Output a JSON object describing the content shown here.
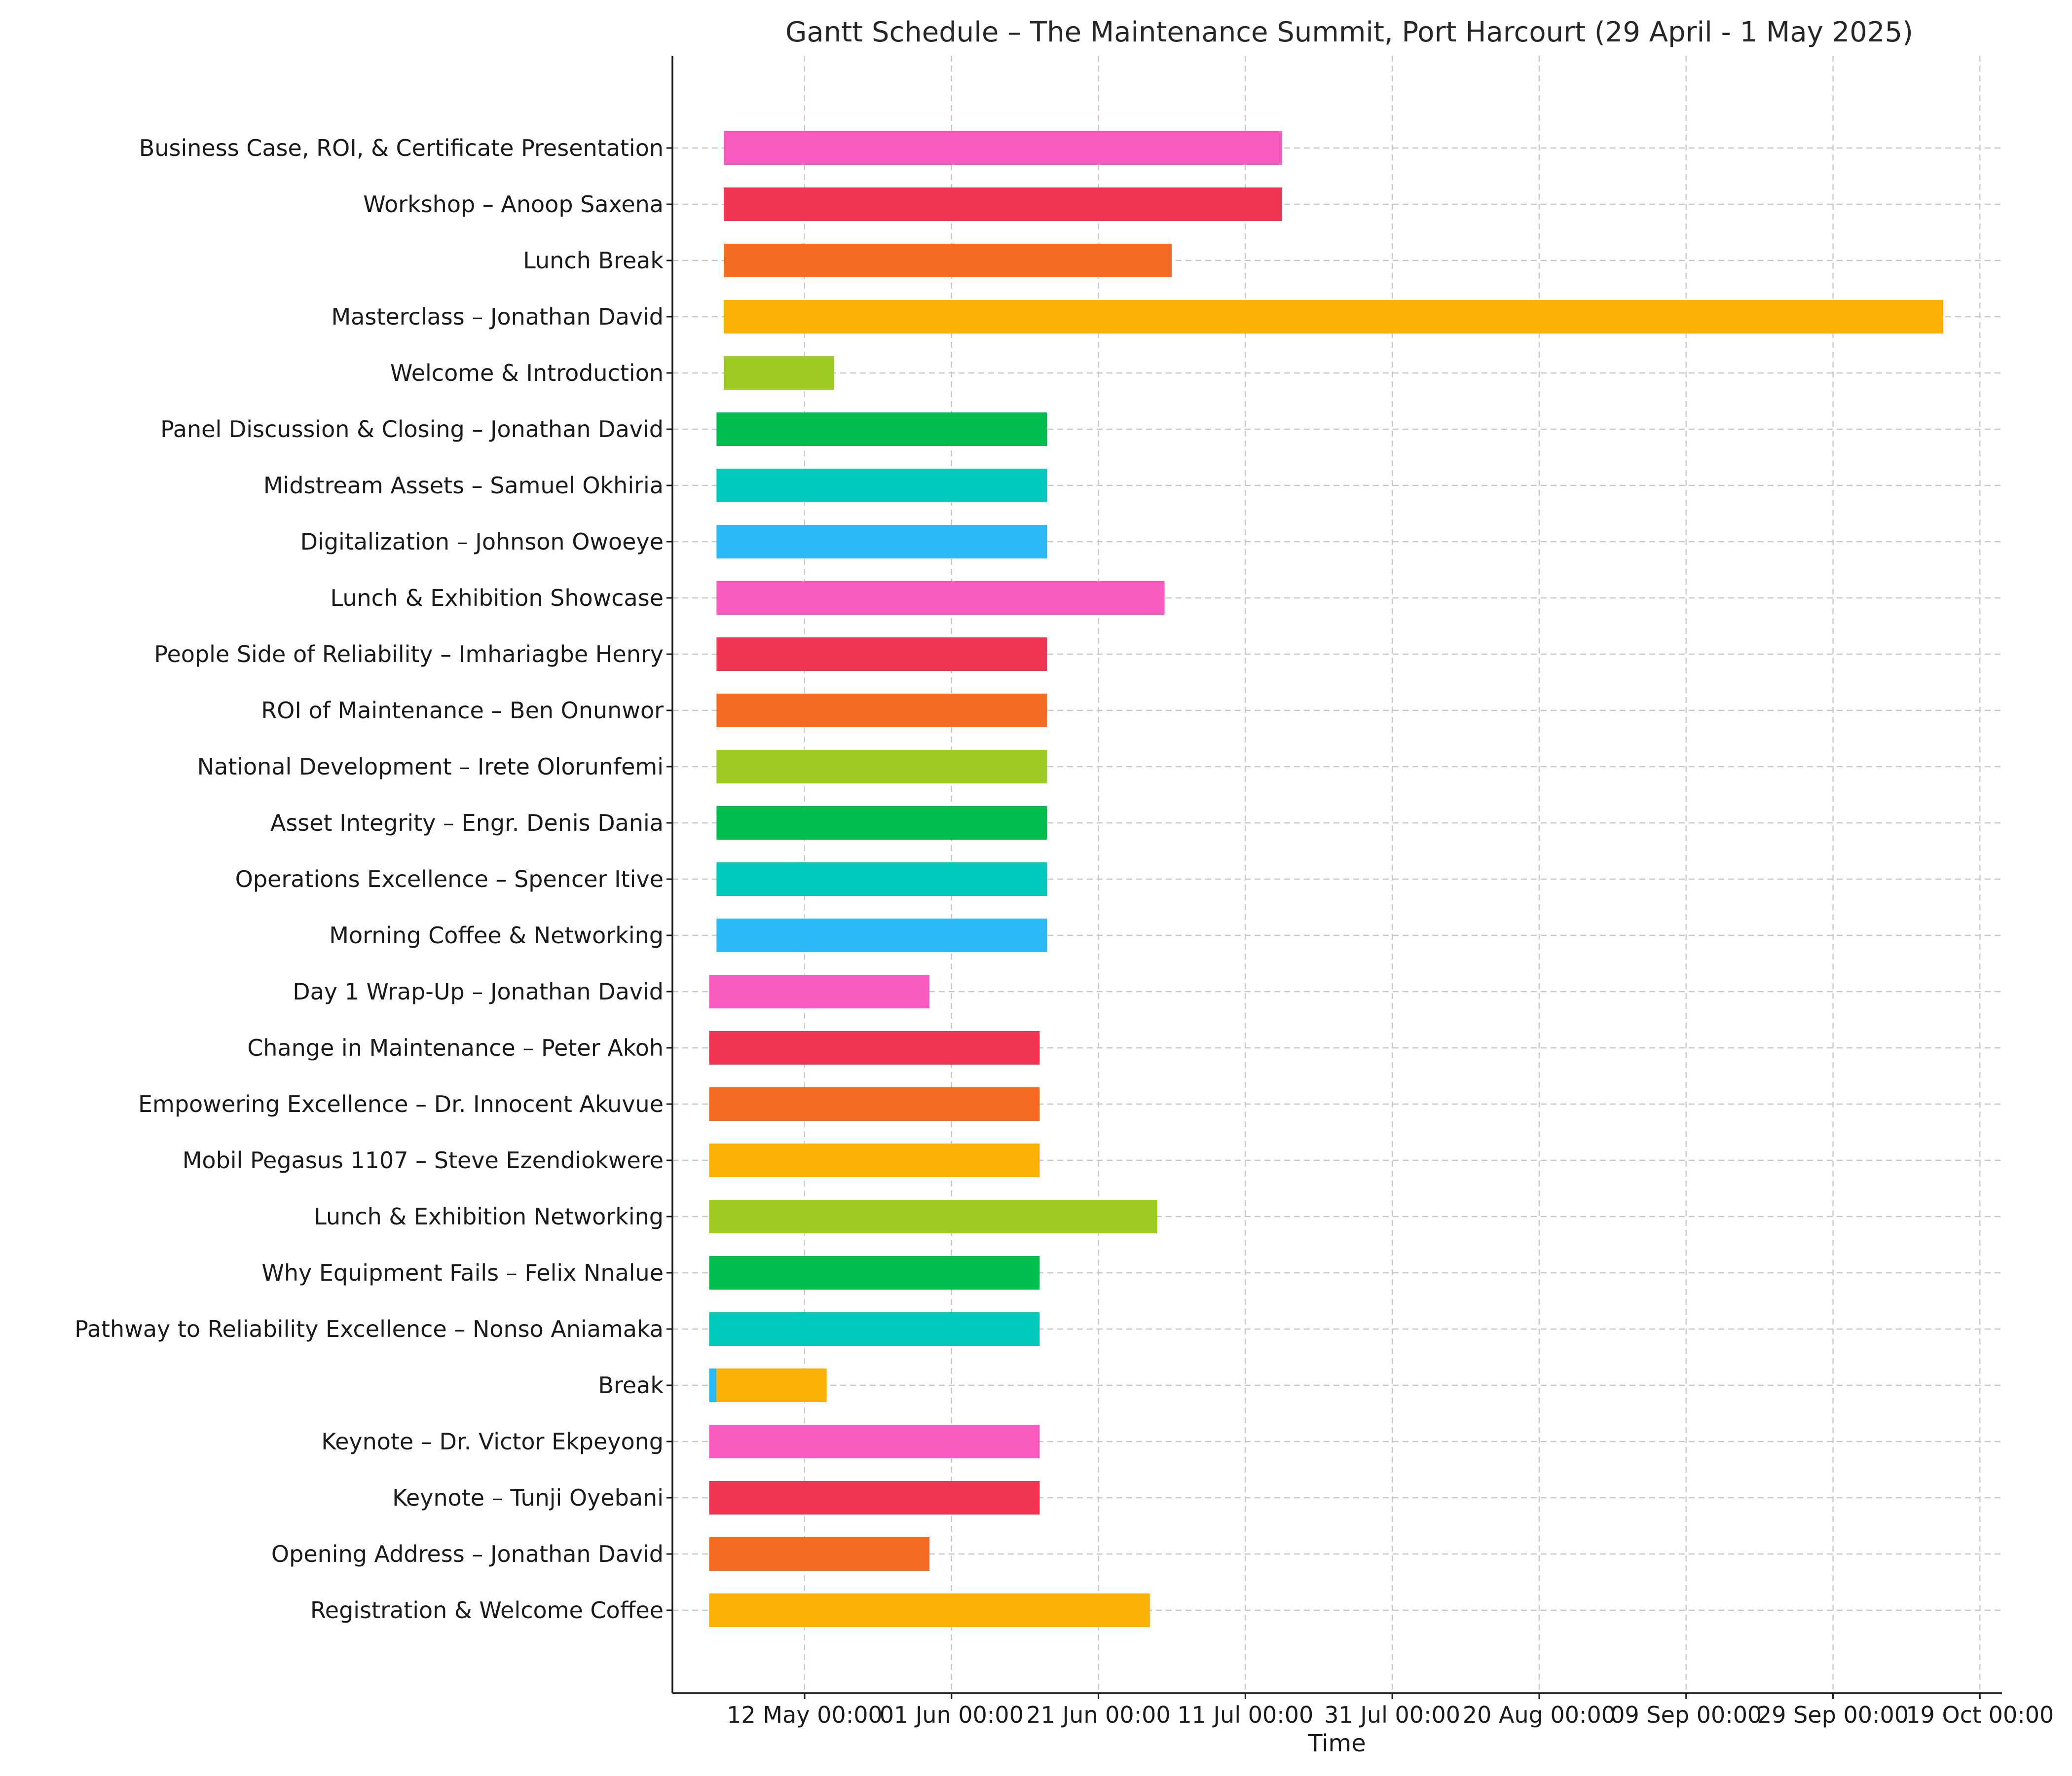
{
  "chart_data": {
    "type": "bar",
    "orientation": "horizontal-gantt",
    "title": "Gantt Schedule – The Maintenance Summit, Port Harcourt (29 April - 1 May 2025)",
    "xlabel": "Time",
    "ylabel": "",
    "grid": true,
    "legend": "none",
    "x_axis": {
      "type": "date",
      "range": [
        "2025-04-24",
        "2025-10-22"
      ],
      "ticks": [
        {
          "date": "2025-05-12",
          "label": "12 May 00:00"
        },
        {
          "date": "2025-06-01",
          "label": "01 Jun 00:00"
        },
        {
          "date": "2025-06-21",
          "label": "21 Jun 00:00"
        },
        {
          "date": "2025-07-11",
          "label": "11 Jul 00:00"
        },
        {
          "date": "2025-07-31",
          "label": "31 Jul 00:00"
        },
        {
          "date": "2025-08-20",
          "label": "20 Aug 00:00"
        },
        {
          "date": "2025-09-09",
          "label": "09 Sep 00:00"
        },
        {
          "date": "2025-09-29",
          "label": "29 Sep 00:00"
        },
        {
          "date": "2025-10-19",
          "label": "19 Oct 00:00"
        }
      ]
    },
    "tasks": [
      {
        "label": "Business Case, ROI, & Certificate Presentation",
        "start": "2025-05-01",
        "end": "2025-07-16",
        "color": "#f75bbf"
      },
      {
        "label": "Workshop – Anoop Saxena",
        "start": "2025-05-01",
        "end": "2025-07-16",
        "color": "#f03553"
      },
      {
        "label": "Lunch Break",
        "start": "2025-05-01",
        "end": "2025-07-01",
        "color": "#f26b21"
      },
      {
        "label": "Masterclass – Jonathan David",
        "start": "2025-05-01",
        "end": "2025-10-14",
        "color": "#fbb005"
      },
      {
        "label": "Welcome & Introduction",
        "start": "2025-05-01",
        "end": "2025-05-16",
        "color": "#9cca22"
      },
      {
        "label": "Panel Discussion & Closing – Jonathan David",
        "start": "2025-04-30",
        "end": "2025-06-14",
        "color": "#00bf4f"
      },
      {
        "label": "Midstream Assets – Samuel Okhiria",
        "start": "2025-04-30",
        "end": "2025-06-14",
        "color": "#00c9bb"
      },
      {
        "label": "Digitalization – Johnson Owoeye",
        "start": "2025-04-30",
        "end": "2025-06-14",
        "color": "#2ab9f6"
      },
      {
        "label": "Lunch & Exhibition Showcase",
        "start": "2025-04-30",
        "end": "2025-06-30",
        "color": "#f75bbf"
      },
      {
        "label": "People Side of Reliability – Imhariagbe Henry",
        "start": "2025-04-30",
        "end": "2025-06-14",
        "color": "#f03553"
      },
      {
        "label": "ROI of Maintenance – Ben Onunwor",
        "start": "2025-04-30",
        "end": "2025-06-14",
        "color": "#f26b21"
      },
      {
        "label": "National Development – Irete Olorunfemi",
        "start": "2025-04-30",
        "end": "2025-06-14",
        "color": "#9cca22"
      },
      {
        "label": "Asset Integrity – Engr. Denis Dania",
        "start": "2025-04-30",
        "end": "2025-06-14",
        "color": "#00bf4f"
      },
      {
        "label": "Operations Excellence – Spencer Itive",
        "start": "2025-04-30",
        "end": "2025-06-14",
        "color": "#00c9bb"
      },
      {
        "label": "Morning Coffee & Networking",
        "start": "2025-04-30",
        "end": "2025-06-14",
        "color": "#2ab9f6"
      },
      {
        "label": "Day 1 Wrap-Up – Jonathan David",
        "start": "2025-04-29",
        "end": "2025-05-29",
        "color": "#f75bbf"
      },
      {
        "label": "Change in Maintenance – Peter Akoh",
        "start": "2025-04-29",
        "end": "2025-06-13",
        "color": "#f03553"
      },
      {
        "label": "Empowering Excellence – Dr. Innocent Akuvue",
        "start": "2025-04-29",
        "end": "2025-06-13",
        "color": "#f26b21"
      },
      {
        "label": "Mobil Pegasus 1107 – Steve Ezendiokwere",
        "start": "2025-04-29",
        "end": "2025-06-13",
        "color": "#fbb005"
      },
      {
        "label": "Lunch & Exhibition Networking",
        "start": "2025-04-29",
        "end": "2025-06-29",
        "color": "#9cca22"
      },
      {
        "label": "Why Equipment Fails – Felix Nnalue",
        "start": "2025-04-29",
        "end": "2025-06-13",
        "color": "#00bf4f"
      },
      {
        "label": "Pathway to Reliability Excellence – Nonso Aniamaka",
        "start": "2025-04-29",
        "end": "2025-06-13",
        "color": "#00c9bb"
      },
      {
        "label": "Break",
        "start": "2025-04-29",
        "end": "2025-04-30",
        "color": "#2ab9f6"
      },
      {
        "label": "Break",
        "start": "2025-04-30",
        "end": "2025-05-15",
        "color": "#fbb005"
      },
      {
        "label": "Keynote – Dr. Victor Ekpeyong",
        "start": "2025-04-29",
        "end": "2025-06-13",
        "color": "#f75bbf"
      },
      {
        "label": "Keynote – Tunji Oyebani",
        "start": "2025-04-29",
        "end": "2025-06-13",
        "color": "#f03553"
      },
      {
        "label": "Opening Address – Jonathan David",
        "start": "2025-04-29",
        "end": "2025-05-29",
        "color": "#f26b21"
      },
      {
        "label": "Registration & Welcome Coffee",
        "start": "2025-04-29",
        "end": "2025-06-28",
        "color": "#fbb005"
      }
    ]
  }
}
